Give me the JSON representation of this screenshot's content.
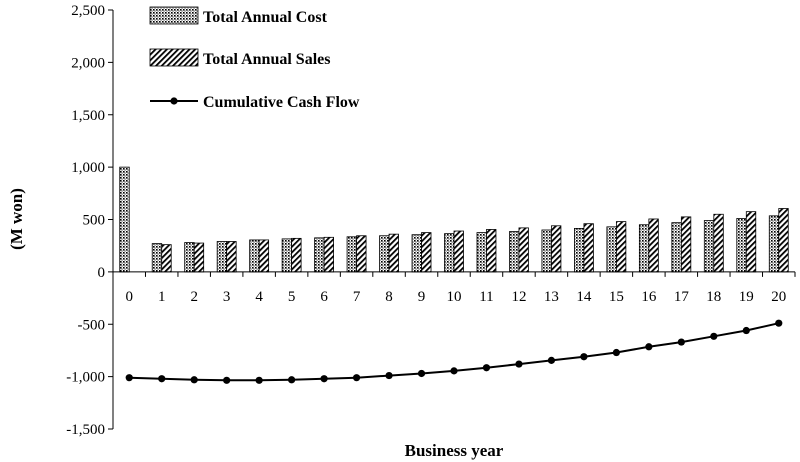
{
  "chart_data": {
    "type": "bar",
    "xlabel": "Business year",
    "ylabel": "(M won)",
    "ylim": [
      -1500,
      2500
    ],
    "yticks": [
      2500,
      2000,
      1500,
      1000,
      500,
      0,
      -500,
      -1000,
      -1500
    ],
    "ytick_labels": [
      "2,500",
      "2,000",
      "1,500",
      "1,000",
      "500",
      "0",
      "-500",
      "-1,000",
      "-1,500"
    ],
    "categories": [
      "0",
      "1",
      "2",
      "3",
      "4",
      "5",
      "6",
      "7",
      "8",
      "9",
      "10",
      "11",
      "12",
      "13",
      "14",
      "15",
      "16",
      "17",
      "18",
      "19",
      "20"
    ],
    "grid": false,
    "legend_position": "top-left",
    "series": [
      {
        "name": "Total Annual Cost",
        "kind": "bar",
        "pattern": "dense-dots",
        "values": [
          1000,
          270,
          280,
          290,
          305,
          315,
          325,
          335,
          345,
          355,
          365,
          375,
          385,
          400,
          415,
          430,
          450,
          470,
          490,
          510,
          535
        ]
      },
      {
        "name": "Total Annual Sales",
        "kind": "bar",
        "pattern": "diagonal-hatch",
        "values": [
          0,
          260,
          275,
          290,
          305,
          320,
          330,
          345,
          360,
          375,
          390,
          405,
          420,
          440,
          460,
          480,
          505,
          525,
          550,
          575,
          605
        ]
      },
      {
        "name": "Cumulative Cash Flow",
        "kind": "line",
        "marker": "circle",
        "values": [
          -1010,
          -1020,
          -1030,
          -1035,
          -1035,
          -1030,
          -1020,
          -1010,
          -990,
          -970,
          -945,
          -915,
          -880,
          -845,
          -810,
          -770,
          -715,
          -670,
          -615,
          -560,
          -490
        ]
      }
    ]
  }
}
